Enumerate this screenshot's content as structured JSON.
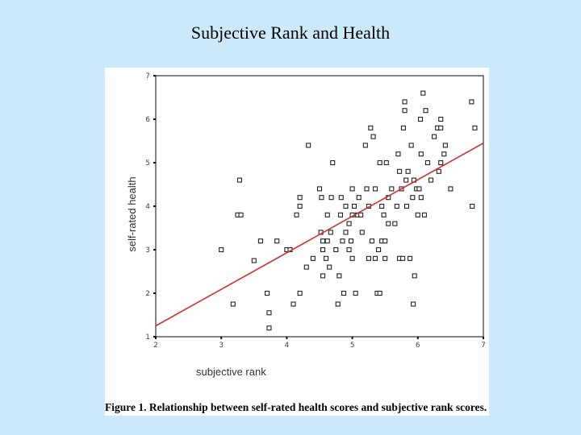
{
  "slide": {
    "title": "Subjective Rank and Health",
    "caption": "Figure 1. Relationship between self-rated health scores and subjective rank scores."
  },
  "colors": {
    "background": "#cce9fb",
    "regression_line": "#d03030"
  },
  "chart_data": {
    "type": "scatter",
    "xlabel": "subjective rank",
    "ylabel": "self-rated health",
    "xlim": [
      2,
      7
    ],
    "ylim": [
      1,
      7
    ],
    "xticks": [
      2,
      3,
      4,
      5,
      6,
      7
    ],
    "yticks": [
      1,
      2,
      3,
      4,
      5,
      6,
      7
    ],
    "regression_line": {
      "x": [
        2,
        7
      ],
      "y": [
        1.25,
        5.45
      ]
    },
    "points": [
      [
        3.0,
        3.0
      ],
      [
        3.18,
        1.75
      ],
      [
        3.25,
        3.8
      ],
      [
        3.3,
        3.8
      ],
      [
        3.28,
        4.6
      ],
      [
        3.5,
        2.75
      ],
      [
        3.6,
        3.2
      ],
      [
        3.7,
        2.0
      ],
      [
        3.73,
        1.55
      ],
      [
        3.73,
        1.2
      ],
      [
        3.85,
        3.2
      ],
      [
        4.0,
        3.0
      ],
      [
        4.05,
        3.0
      ],
      [
        4.1,
        1.75
      ],
      [
        4.15,
        3.8
      ],
      [
        4.2,
        2.0
      ],
      [
        4.2,
        4.0
      ],
      [
        4.2,
        4.2
      ],
      [
        4.3,
        2.6
      ],
      [
        4.33,
        5.4
      ],
      [
        4.4,
        2.8
      ],
      [
        4.5,
        4.4
      ],
      [
        4.52,
        3.4
      ],
      [
        4.53,
        4.2
      ],
      [
        4.55,
        3.2
      ],
      [
        4.55,
        3.0
      ],
      [
        4.55,
        2.4
      ],
      [
        4.6,
        2.8
      ],
      [
        4.62,
        3.2
      ],
      [
        4.62,
        3.8
      ],
      [
        4.65,
        2.6
      ],
      [
        4.67,
        3.4
      ],
      [
        4.68,
        4.2
      ],
      [
        4.7,
        5.0
      ],
      [
        4.75,
        3.0
      ],
      [
        4.78,
        1.75
      ],
      [
        4.8,
        2.4
      ],
      [
        4.82,
        3.8
      ],
      [
        4.83,
        4.2
      ],
      [
        4.85,
        3.2
      ],
      [
        4.87,
        2.0
      ],
      [
        4.9,
        3.4
      ],
      [
        4.9,
        4.0
      ],
      [
        4.95,
        3.6
      ],
      [
        4.95,
        3.0
      ],
      [
        4.98,
        3.2
      ],
      [
        5.0,
        2.8
      ],
      [
        5.0,
        3.8
      ],
      [
        5.0,
        4.4
      ],
      [
        5.03,
        4.0
      ],
      [
        5.05,
        2.0
      ],
      [
        5.08,
        3.8
      ],
      [
        5.1,
        4.2
      ],
      [
        5.13,
        3.8
      ],
      [
        5.15,
        3.4
      ],
      [
        5.2,
        5.4
      ],
      [
        5.22,
        4.4
      ],
      [
        5.25,
        2.8
      ],
      [
        5.25,
        4.0
      ],
      [
        5.28,
        5.8
      ],
      [
        5.3,
        3.2
      ],
      [
        5.32,
        5.6
      ],
      [
        5.35,
        2.8
      ],
      [
        5.35,
        4.4
      ],
      [
        5.38,
        2.0
      ],
      [
        5.4,
        3.0
      ],
      [
        5.42,
        2.0
      ],
      [
        5.42,
        5.0
      ],
      [
        5.45,
        3.2
      ],
      [
        5.45,
        4.0
      ],
      [
        5.48,
        3.8
      ],
      [
        5.5,
        2.8
      ],
      [
        5.5,
        3.2
      ],
      [
        5.52,
        5.0
      ],
      [
        5.55,
        3.6
      ],
      [
        5.55,
        4.2
      ],
      [
        5.6,
        4.4
      ],
      [
        5.65,
        3.6
      ],
      [
        5.68,
        4.0
      ],
      [
        5.7,
        5.2
      ],
      [
        5.72,
        2.8
      ],
      [
        5.72,
        4.8
      ],
      [
        5.75,
        4.4
      ],
      [
        5.77,
        2.8
      ],
      [
        5.78,
        5.8
      ],
      [
        5.8,
        6.2
      ],
      [
        5.8,
        6.4
      ],
      [
        5.82,
        4.6
      ],
      [
        5.83,
        4.0
      ],
      [
        5.85,
        4.8
      ],
      [
        5.88,
        2.8
      ],
      [
        5.9,
        5.4
      ],
      [
        5.92,
        4.2
      ],
      [
        5.93,
        1.75
      ],
      [
        5.94,
        4.6
      ],
      [
        5.95,
        2.4
      ],
      [
        5.98,
        4.4
      ],
      [
        6.0,
        3.8
      ],
      [
        6.02,
        4.4
      ],
      [
        6.04,
        6.0
      ],
      [
        6.05,
        4.2
      ],
      [
        6.05,
        5.2
      ],
      [
        6.08,
        6.6
      ],
      [
        6.1,
        3.8
      ],
      [
        6.12,
        6.2
      ],
      [
        6.15,
        5.0
      ],
      [
        6.2,
        4.6
      ],
      [
        6.25,
        5.6
      ],
      [
        6.3,
        5.8
      ],
      [
        6.32,
        4.8
      ],
      [
        6.35,
        5.0
      ],
      [
        6.35,
        6.0
      ],
      [
        6.35,
        5.8
      ],
      [
        6.4,
        5.2
      ],
      [
        6.42,
        5.4
      ],
      [
        6.5,
        4.4
      ],
      [
        6.82,
        6.4
      ],
      [
        6.83,
        4.0
      ],
      [
        6.87,
        5.8
      ]
    ]
  }
}
